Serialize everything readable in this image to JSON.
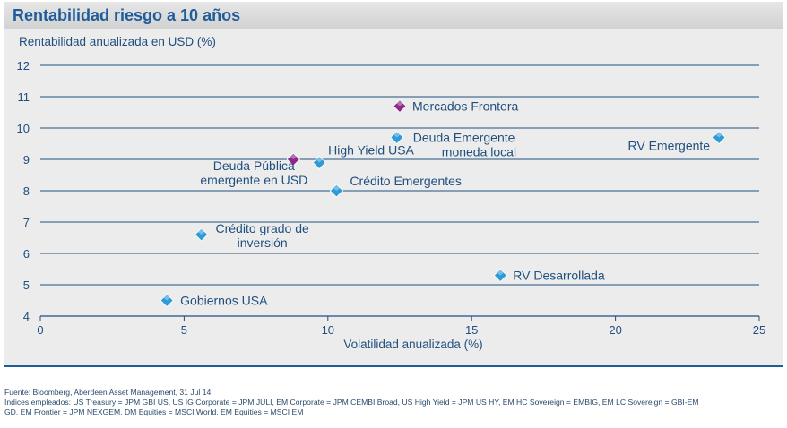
{
  "title": "Rentabilidad riesgo a 10 años",
  "footer": {
    "source": "Fuente: Bloomberg, Aberdeen Asset Management, 31 Jul 14",
    "indices_line1": "Indices empleados: US Treasury = JPM GBI US, US IG Corporate = JPM JULI, EM Corporate = JPM CEMBI Broad, US High Yield = JPM US HY, EM HC Sovereign = EMBIG, EM LC Sovereign = GBI-EM",
    "indices_line2": "GD, EM Frontier = JPM NEXGEM, DM Equities = MSCI World, EM Equities = MSCI EM"
  },
  "colors": {
    "title": "#1f5c99",
    "axis": "#1f4f7f",
    "gridline": "#1f4f7f",
    "point_blue": "#2e9bd6",
    "point_purple": "#8b2a8b"
  },
  "chart_data": {
    "type": "scatter",
    "title": "Rentabilidad riesgo a 10 años",
    "ylabel": "Rentabilidad anualizada en USD (%)",
    "xlabel": "Volatilidad anualizada (%)",
    "xlim": [
      0,
      25
    ],
    "ylim": [
      4,
      12
    ],
    "xticks": [
      0,
      5,
      10,
      15,
      20,
      25
    ],
    "yticks": [
      4,
      5,
      6,
      7,
      8,
      9,
      10,
      11,
      12
    ],
    "grid": "horizontal",
    "points": [
      {
        "id": "mercados-frontera",
        "label": [
          "Mercados Frontera"
        ],
        "x": 12.5,
        "y": 10.7,
        "color": "purple"
      },
      {
        "id": "deuda-emergente-local",
        "label": [
          "Deuda Emergente",
          "moneda local"
        ],
        "x": 12.4,
        "y": 9.7,
        "color": "blue"
      },
      {
        "id": "rv-emergente",
        "label": [
          "RV Emergente"
        ],
        "x": 23.6,
        "y": 9.7,
        "color": "blue"
      },
      {
        "id": "high-yield-usa",
        "label": [
          "High Yield USA"
        ],
        "x": 9.7,
        "y": 8.9,
        "color": "blue"
      },
      {
        "id": "deuda-publica-emergente-usd",
        "label": [
          "Deuda Pública",
          "emergente en USD"
        ],
        "x": 8.8,
        "y": 9.0,
        "color": "purple"
      },
      {
        "id": "credito-emergentes",
        "label": [
          "Crédito Emergentes"
        ],
        "x": 10.3,
        "y": 8.0,
        "color": "blue"
      },
      {
        "id": "credito-grado-inversion",
        "label": [
          "Crédito grado de",
          "inversión"
        ],
        "x": 5.6,
        "y": 6.6,
        "color": "blue"
      },
      {
        "id": "rv-desarrollada",
        "label": [
          "RV Desarrollada"
        ],
        "x": 16.0,
        "y": 5.3,
        "color": "blue"
      },
      {
        "id": "gobiernos-usa",
        "label": [
          "Gobiernos USA"
        ],
        "x": 4.4,
        "y": 4.5,
        "color": "blue"
      }
    ]
  }
}
